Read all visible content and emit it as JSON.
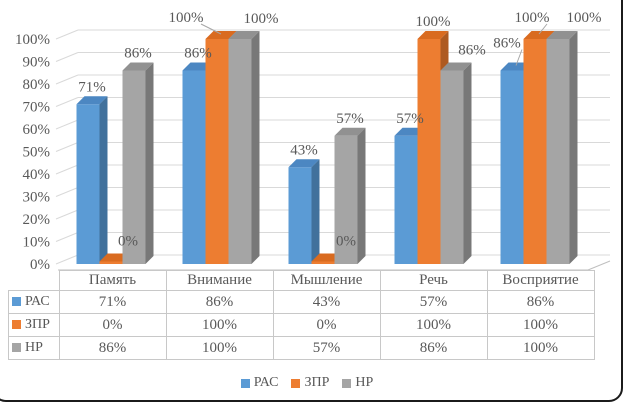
{
  "chart_data": {
    "type": "bar",
    "variant": "3d-clustered-column",
    "title": "",
    "categories": [
      "Память",
      "Внимание",
      "Мышление",
      "Речь",
      "Восприятие"
    ],
    "series": [
      {
        "name": "РАС",
        "color": "#5b9bd5",
        "top_color": "#4c87c2",
        "side_color": "#41719c",
        "values": [
          71,
          86,
          43,
          57,
          86
        ]
      },
      {
        "name": "ЗПР",
        "color": "#ed7d31",
        "top_color": "#d96b20",
        "side_color": "#ae5a21",
        "values": [
          0,
          100,
          0,
          100,
          100
        ]
      },
      {
        "name": "НР",
        "color": "#a5a5a5",
        "top_color": "#919191",
        "side_color": "#787878",
        "values": [
          86,
          100,
          57,
          86,
          100
        ]
      }
    ],
    "value_suffix": "%",
    "ylabel": "",
    "xlabel": "",
    "ylim": [
      0,
      100
    ],
    "y_tick_step": 10,
    "y_tick_labels": [
      "0%",
      "10%",
      "20%",
      "30%",
      "40%",
      "50%",
      "60%",
      "70%",
      "80%",
      "90%",
      "100%"
    ],
    "grid": true,
    "legend_position": "bottom",
    "data_table_shown": true,
    "data_labels_shown": true,
    "label_layout": {
      "1-0": {
        "dx": 13,
        "dy": -3,
        "leader": false
      },
      "1-1": {
        "dx": -35,
        "dy": -4,
        "leader": true
      },
      "2-1": {
        "dx": 17,
        "dy": -3,
        "leader": false
      },
      "1-2": {
        "dx": 19,
        "dy": -3,
        "leader": false
      },
      "2-3": {
        "dx": 16,
        "dy": -3,
        "leader": false
      },
      "0-4": {
        "dx": -9,
        "dy": -10,
        "leader": true
      },
      "1-4": {
        "dx": -7,
        "dy": -4,
        "leader": true
      },
      "2-4": {
        "dx": 22,
        "dy": -4,
        "leader": false
      }
    },
    "colors": {
      "gridline": "#d9d9d9",
      "axis_line": "#bfbfbf",
      "text": "#595959",
      "leader_line": "#a6a6a6",
      "table_border": "#c8c8c8",
      "frame_border": "#1b1b1b"
    }
  }
}
